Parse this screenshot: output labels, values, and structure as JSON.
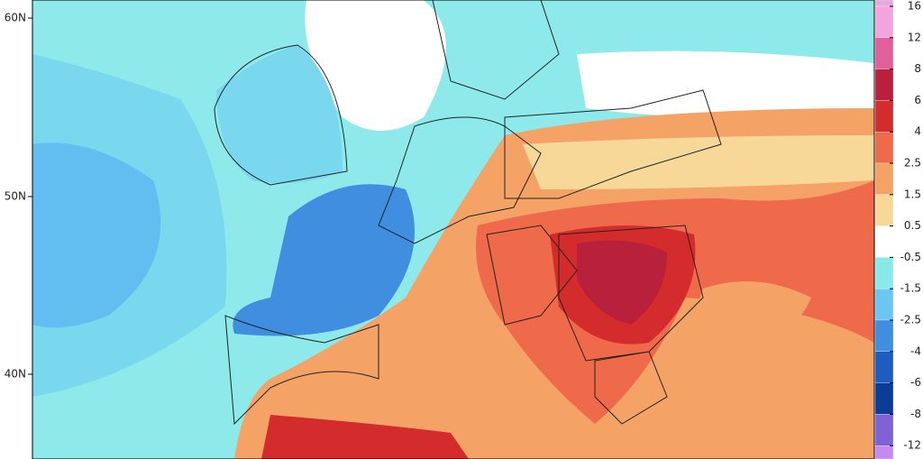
{
  "map": {
    "lat_labels": [
      "60N",
      "50N",
      "40N"
    ],
    "legend": {
      "labels": [
        16,
        12,
        8,
        6,
        4,
        2.5,
        1.5,
        0.5,
        -0.5,
        -1.5,
        -2.5,
        -4,
        -6,
        -8,
        -12
      ],
      "colors": [
        "#e8a8d8",
        "#f4a4dc",
        "#e0609c",
        "#b8203c",
        "#d42c2c",
        "#ee6a4a",
        "#f4a266",
        "#f8d898",
        "#ffffff",
        "#8aeaea",
        "#6cc6f2",
        "#3f8ee0",
        "#1f5cc0",
        "#0a3c98",
        "#7e62d6",
        "#c48af0"
      ]
    }
  }
}
